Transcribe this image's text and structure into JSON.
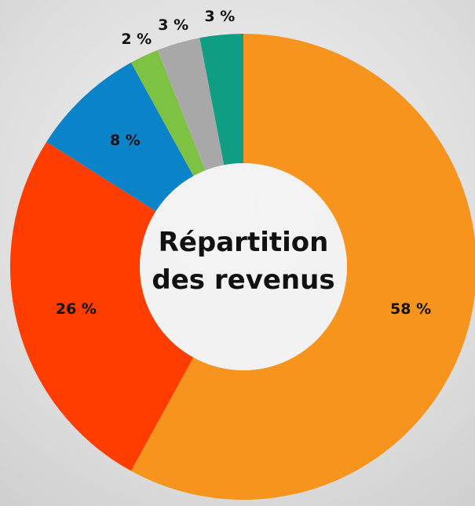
{
  "chart_data": {
    "type": "donut",
    "title": "Répartition des revenus",
    "values": [
      58,
      26,
      8,
      2,
      3,
      3
    ],
    "value_labels": [
      "58 %",
      "26 %",
      "8 %",
      "2 %",
      "3 %",
      "3 %"
    ],
    "colors": [
      "#f7941d",
      "#ff3d00",
      "#0a83c9",
      "#7dc242",
      "#a8a8a8",
      "#0f9e84"
    ]
  }
}
